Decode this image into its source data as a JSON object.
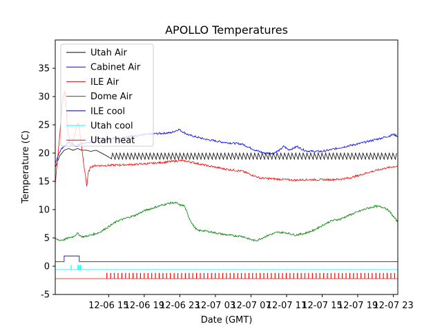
{
  "chart_data": {
    "type": "line",
    "title": "APOLLO Temperatures",
    "xlabel": "Date (GMT)",
    "ylabel": "Temperature (C)",
    "xlim": [
      9.0,
      47.5
    ],
    "ylim": [
      -5,
      40
    ],
    "yticks": [
      -5,
      0,
      5,
      10,
      15,
      20,
      25,
      30,
      35
    ],
    "xticks": [
      {
        "value": 15,
        "label": "12-06 15"
      },
      {
        "value": 19,
        "label": "12-06 19"
      },
      {
        "value": 23,
        "label": "12-06 23"
      },
      {
        "value": 27,
        "label": "12-07 03"
      },
      {
        "value": 31,
        "label": "12-07 07"
      },
      {
        "value": 35,
        "label": "12-07 11"
      },
      {
        "value": 39,
        "label": "12-07 15"
      },
      {
        "value": 43,
        "label": "12-07 19"
      },
      {
        "value": 47,
        "label": "12-07 23"
      }
    ],
    "legend_position": "top-left",
    "series": [
      {
        "name": "Utah Air",
        "color": "#000000",
        "style": "sawtooth",
        "x": [
          9.0,
          9.5,
          10.0,
          10.5,
          11.0,
          11.5,
          12.0,
          12.5,
          13.0,
          13.6,
          14.2,
          14.8,
          15.3
        ],
        "y": [
          17.5,
          19.5,
          20.5,
          20.8,
          20.5,
          20.8,
          20.5,
          20.5,
          20.3,
          20.5,
          20.0,
          19.5,
          19.0
        ],
        "saw": {
          "x0": 15.3,
          "x1": 47.5,
          "period": 0.42,
          "low": 18.9,
          "high": 20.0
        }
      },
      {
        "name": "Cabinet Air",
        "color": "#0000ff",
        "style": "line",
        "x": [
          9.0,
          9.3,
          9.7,
          10.2,
          10.6,
          11.0,
          11.4,
          11.8,
          12.2,
          13.0,
          14.0,
          15.5,
          17.5,
          20.0,
          22.0,
          22.9,
          23.3,
          24.0,
          26.0,
          28.0,
          30.0,
          31.5,
          32.5,
          33.5,
          34.2,
          34.7,
          35.2,
          35.7,
          36.2,
          36.7,
          37.2,
          38.0,
          39.0,
          40.0,
          42.0,
          43.5,
          45.0,
          46.5,
          47.0,
          47.5
        ],
        "y": [
          18.2,
          19.5,
          20.8,
          21.5,
          22.0,
          21.5,
          21.2,
          21.6,
          21.8,
          21.9,
          22.2,
          22.6,
          23.0,
          23.4,
          23.6,
          24.2,
          23.8,
          23.2,
          22.4,
          21.9,
          21.6,
          20.5,
          20.0,
          20.0,
          20.5,
          21.2,
          20.6,
          20.8,
          21.2,
          20.7,
          20.4,
          20.3,
          20.3,
          20.6,
          21.3,
          21.8,
          22.4,
          23.0,
          23.3,
          23.0
        ]
      },
      {
        "name": "ILE Air",
        "color": "#ff0000",
        "style": "line",
        "x": [
          9.0,
          9.2,
          9.5,
          9.8,
          10.1,
          10.4,
          10.7,
          11.0,
          11.3,
          11.6,
          11.9,
          12.2,
          12.4,
          12.55,
          12.7,
          13.0,
          13.5,
          14.5,
          16.0,
          18.0,
          20.0,
          22.0,
          23.0,
          24.0,
          26.0,
          28.0,
          30.0,
          31.0,
          32.0,
          34.0,
          35.0,
          36.0,
          37.0,
          38.0,
          40.0,
          41.0,
          42.0,
          43.0,
          44.0,
          45.0,
          46.0,
          47.0,
          47.5
        ],
        "y": [
          14.5,
          18.0,
          23.0,
          29.0,
          31.0,
          24.0,
          21.5,
          22.0,
          24.0,
          25.5,
          22.0,
          18.0,
          16.0,
          14.0,
          16.5,
          17.6,
          17.8,
          17.8,
          17.9,
          18.0,
          18.2,
          18.5,
          18.7,
          18.5,
          17.8,
          17.2,
          16.8,
          16.2,
          15.6,
          15.4,
          15.3,
          15.2,
          15.3,
          15.3,
          15.3,
          15.4,
          15.6,
          16.0,
          16.5,
          16.9,
          17.3,
          17.6,
          17.7
        ]
      },
      {
        "name": "Dome Air",
        "color": "#008000",
        "style": "line",
        "x": [
          9.0,
          9.5,
          10.0,
          10.5,
          11.0,
          11.5,
          12.0,
          12.5,
          13.0,
          14.0,
          15.0,
          16.0,
          17.0,
          18.0,
          19.0,
          20.0,
          21.0,
          22.0,
          22.6,
          23.0,
          23.5,
          24.0,
          24.5,
          25.0,
          25.5,
          26.0,
          27.0,
          28.0,
          29.0,
          30.0,
          31.0,
          31.5,
          32.0,
          33.0,
          34.0,
          35.0,
          36.0,
          37.0,
          38.0,
          39.0,
          40.0,
          40.5,
          41.0,
          42.0,
          43.0,
          44.0,
          45.0,
          46.0,
          46.5,
          47.0,
          47.5
        ],
        "y": [
          4.8,
          4.6,
          4.7,
          5.0,
          5.2,
          5.8,
          5.2,
          5.3,
          5.5,
          6.0,
          7.0,
          8.0,
          8.5,
          9.0,
          9.8,
          10.3,
          10.8,
          11.2,
          11.2,
          10.8,
          10.7,
          8.7,
          7.2,
          6.3,
          6.3,
          6.2,
          5.9,
          5.6,
          5.4,
          5.3,
          4.7,
          4.5,
          4.8,
          5.5,
          6.0,
          5.9,
          5.5,
          5.8,
          6.3,
          7.2,
          8.0,
          8.2,
          8.3,
          9.0,
          9.6,
          10.2,
          10.6,
          10.4,
          9.8,
          8.8,
          7.8
        ]
      },
      {
        "name": "ILE cool",
        "color": "#000080",
        "style": "step",
        "x": [
          9.0,
          10.0,
          10.0,
          11.7,
          11.7,
          47.5
        ],
        "y": [
          0.8,
          0.8,
          1.8,
          1.8,
          0.8,
          0.8
        ]
      },
      {
        "name": "Utah cool",
        "color": "#00ffff",
        "style": "step",
        "x": [
          9.0,
          47.5
        ],
        "y": [
          -0.6,
          -0.6
        ],
        "spikes": [
          10.8,
          11.55,
          11.7,
          11.85
        ]
      },
      {
        "name": "Utah heat",
        "color": "#ff0000",
        "style": "step",
        "x": [
          9.0,
          47.5
        ],
        "y": [
          -2.2,
          -2.2
        ],
        "spike_height": -1.2,
        "spike_range": [
          14.8,
          47.5
        ],
        "spike_period": 0.42
      }
    ]
  }
}
